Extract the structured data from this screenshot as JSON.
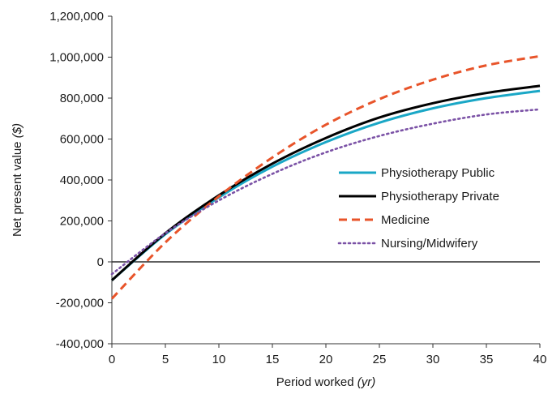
{
  "chart_data": {
    "type": "line",
    "xlabel": "Period worked",
    "xlabel_unit": "(yr)",
    "ylabel": "Net present value",
    "ylabel_unit": "($)",
    "xlim": [
      0,
      40
    ],
    "ylim": [
      -400000,
      1200000
    ],
    "x_ticks": [
      0,
      5,
      10,
      15,
      20,
      25,
      30,
      35,
      40
    ],
    "x_tick_labels": [
      "0",
      "5",
      "10",
      "15",
      "20",
      "25",
      "30",
      "35",
      "40"
    ],
    "y_ticks": [
      -400000,
      -200000,
      0,
      200000,
      400000,
      600000,
      800000,
      1000000,
      1200000
    ],
    "y_tick_labels": [
      "-400,000",
      "-200,000",
      "0",
      "200,000",
      "400,000",
      "600,000",
      "800,000",
      "1,000,000",
      "1,200,000"
    ],
    "grid": false,
    "legend_position": "right",
    "x": [
      0,
      5,
      10,
      15,
      20,
      25,
      30,
      35,
      40
    ],
    "series": [
      {
        "name": "Physiotherapy Public",
        "color": "#1aa7c6",
        "style": "solid",
        "values": [
          -90000,
          135000,
          315000,
          465000,
          585000,
          680000,
          750000,
          800000,
          835000
        ]
      },
      {
        "name": "Physiotherapy Private",
        "color": "#000000",
        "style": "solid",
        "values": [
          -90000,
          140000,
          325000,
          480000,
          605000,
          705000,
          775000,
          825000,
          860000
        ]
      },
      {
        "name": "Medicine",
        "color": "#e8542a",
        "style": "dashed",
        "values": [
          -180000,
          95000,
          320000,
          510000,
          670000,
          795000,
          890000,
          960000,
          1005000
        ]
      },
      {
        "name": "Nursing/Midwifery",
        "color": "#7b52a6",
        "style": "dotted",
        "values": [
          -60000,
          140000,
          300000,
          430000,
          535000,
          615000,
          675000,
          720000,
          745000
        ]
      }
    ]
  }
}
